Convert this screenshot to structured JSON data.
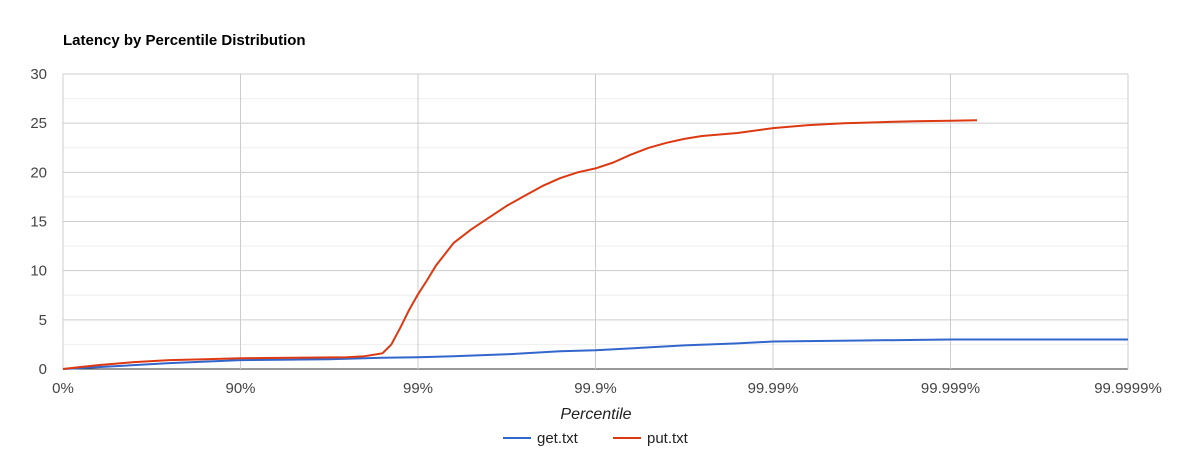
{
  "chart_data": {
    "type": "line",
    "title": "Latency by Percentile Distribution",
    "xlabel": "Percentile",
    "ylabel": "",
    "x_scale": "log-percentile (nines)",
    "x_ticks": [
      "0%",
      "90%",
      "99%",
      "99.9%",
      "99.99%",
      "99.999%",
      "99.9999%"
    ],
    "y_ticks": [
      "0",
      "5",
      "10",
      "15",
      "20",
      "25",
      "30"
    ],
    "ylim": [
      0,
      30
    ],
    "grid": true,
    "legend_position": "bottom",
    "series": [
      {
        "name": "get.txt",
        "color": "#3366cc",
        "points": [
          [
            0,
            0.0
          ],
          [
            0.3,
            0.3
          ],
          [
            0.6,
            0.6
          ],
          [
            1.0,
            0.9
          ],
          [
            1.5,
            1.0
          ],
          [
            1.8,
            1.15
          ],
          [
            2.0,
            1.2
          ],
          [
            2.2,
            1.3
          ],
          [
            2.5,
            1.5
          ],
          [
            2.8,
            1.8
          ],
          [
            3.0,
            1.9
          ],
          [
            3.2,
            2.1
          ],
          [
            3.5,
            2.4
          ],
          [
            3.8,
            2.6
          ],
          [
            4.0,
            2.8
          ],
          [
            4.5,
            2.9
          ],
          [
            5.0,
            3.0
          ],
          [
            6.0,
            3.0
          ]
        ]
      },
      {
        "name": "put.txt",
        "color": "#dc3912",
        "points": [
          [
            0,
            0.0
          ],
          [
            0.1,
            0.2
          ],
          [
            0.2,
            0.4
          ],
          [
            0.4,
            0.7
          ],
          [
            0.6,
            0.9
          ],
          [
            0.8,
            1.0
          ],
          [
            1.0,
            1.1
          ],
          [
            1.3,
            1.15
          ],
          [
            1.6,
            1.2
          ],
          [
            1.7,
            1.3
          ],
          [
            1.8,
            1.6
          ],
          [
            1.85,
            2.5
          ],
          [
            1.9,
            4.2
          ],
          [
            1.95,
            6.0
          ],
          [
            2.0,
            7.6
          ],
          [
            2.05,
            9.0
          ],
          [
            2.1,
            10.5
          ],
          [
            2.2,
            12.8
          ],
          [
            2.3,
            14.2
          ],
          [
            2.4,
            15.4
          ],
          [
            2.5,
            16.6
          ],
          [
            2.6,
            17.6
          ],
          [
            2.7,
            18.6
          ],
          [
            2.8,
            19.4
          ],
          [
            2.9,
            20.0
          ],
          [
            3.0,
            20.4
          ],
          [
            3.1,
            21.0
          ],
          [
            3.2,
            21.8
          ],
          [
            3.3,
            22.5
          ],
          [
            3.4,
            23.0
          ],
          [
            3.5,
            23.4
          ],
          [
            3.6,
            23.7
          ],
          [
            3.8,
            24.0
          ],
          [
            4.0,
            24.5
          ],
          [
            4.2,
            24.8
          ],
          [
            4.4,
            25.0
          ],
          [
            4.6,
            25.1
          ],
          [
            4.8,
            25.2
          ],
          [
            5.0,
            25.25
          ],
          [
            5.15,
            25.3
          ]
        ]
      }
    ]
  }
}
